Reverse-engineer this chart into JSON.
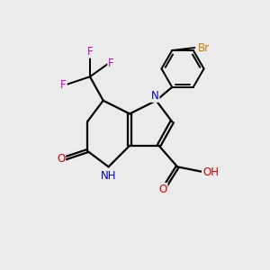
{
  "background_color": "#ebebeb",
  "figsize": [
    3.0,
    3.0
  ],
  "dpi": 100,
  "colors": {
    "C": "#000000",
    "N": "#0000cc",
    "O": "#cc0000",
    "F": "#cc00cc",
    "Br": "#cc7700",
    "bond": "#000000"
  },
  "bond_lw": 1.6,
  "font_size": 8.5
}
